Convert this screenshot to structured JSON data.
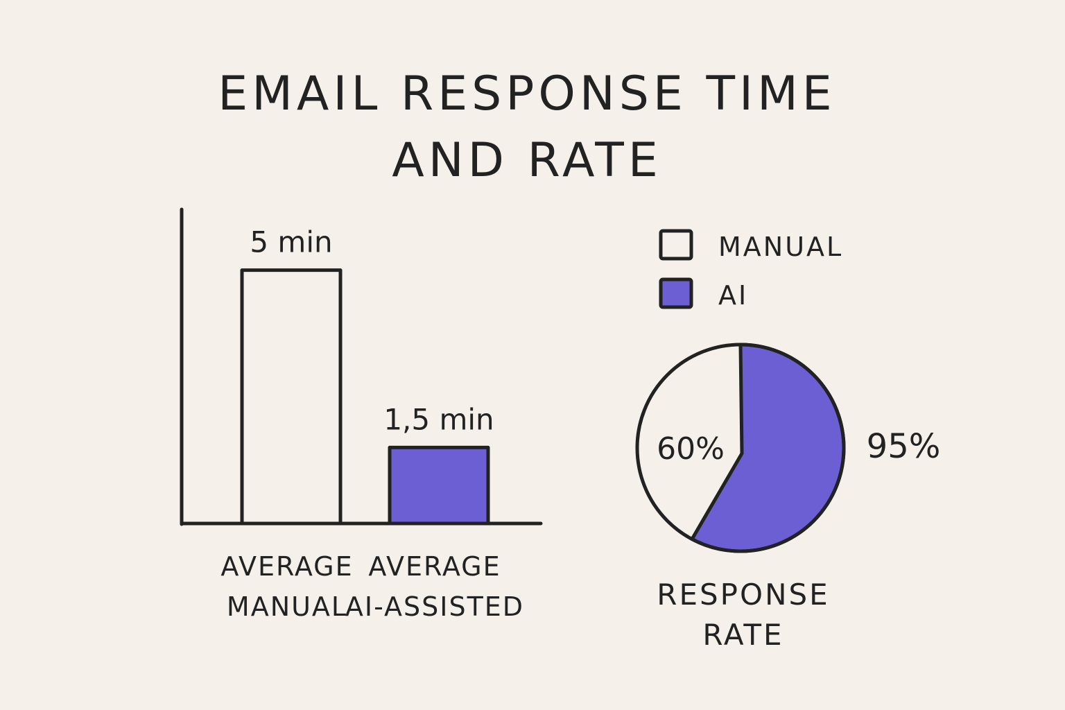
{
  "title_lines": [
    "EMAIL RESPONSE TIME",
    "AND RATE"
  ],
  "colors": {
    "background": "#f5f1ea",
    "ink": "#222222",
    "manual": "#f5f1ea",
    "ai": "#6b5fd3"
  },
  "chart_data": [
    {
      "type": "bar",
      "title": "",
      "categories": [
        [
          "AVERAGE",
          "MANUAL"
        ],
        [
          "AVERAGE",
          "AI-ASSISTED"
        ]
      ],
      "values": [
        5,
        1.5
      ],
      "unit": "min",
      "data_labels": [
        "5 min",
        "1,5 min"
      ],
      "series_colors": [
        "#f5f1ea",
        "#6b5fd3"
      ],
      "ylim": [
        0,
        6.2
      ],
      "xlabel": "",
      "ylabel": "",
      "grid": false
    },
    {
      "type": "pie",
      "title": [
        "RESPONSE",
        "RATE"
      ],
      "legend": {
        "placement": "top",
        "entries": [
          {
            "label": "MANUAL",
            "color": "#f5f1ea"
          },
          {
            "label": "AI",
            "color": "#6b5fd3"
          }
        ]
      },
      "slices": [
        {
          "name": "MANUAL",
          "value": 60,
          "label": "60%",
          "color": "#f5f1ea"
        },
        {
          "name": "AI",
          "value": 95,
          "label": "95%",
          "color": "#6b5fd3"
        }
      ]
    }
  ]
}
